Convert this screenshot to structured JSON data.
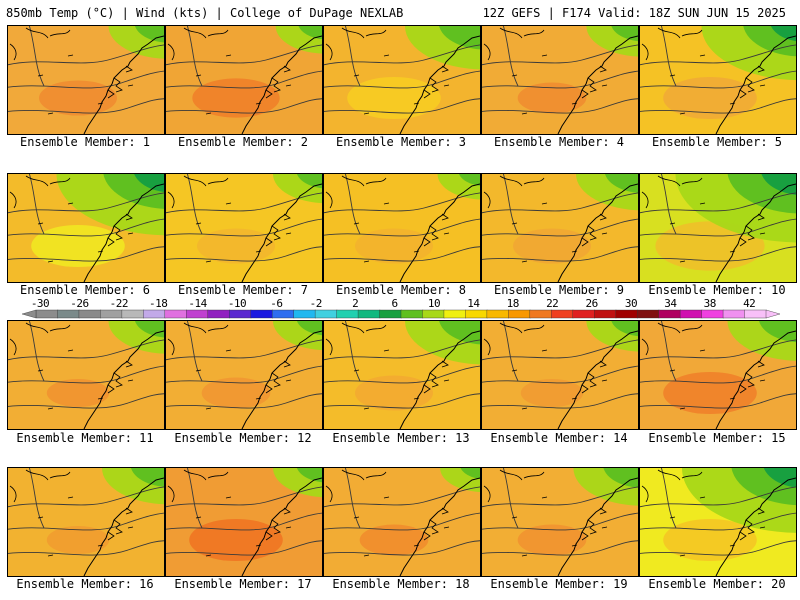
{
  "header": {
    "left_title": "850mb Temp (°C) | Wind (kts) | College of DuPage NEXLAB",
    "right_title": "12Z GEFS | F174 Valid: 18Z SUN JUN 15 2025"
  },
  "colorbar": {
    "tick_labels": [
      "-30",
      "-26",
      "-22",
      "-18",
      "-14",
      "-10",
      "-6",
      "-2",
      "2",
      "6",
      "10",
      "14",
      "18",
      "22",
      "26",
      "30",
      "34",
      "38",
      "42"
    ],
    "colors": [
      "#8c8c8c",
      "#7a8a8a",
      "#8a8a8a",
      "#a0a0a0",
      "#b8b8b8",
      "#c2a9e8",
      "#e070e0",
      "#c040d0",
      "#9020c0",
      "#5a2ad0",
      "#1a1ae0",
      "#2e6ef0",
      "#20b8f0",
      "#40d0e0",
      "#20d0b0",
      "#10b880",
      "#18a040",
      "#60c020",
      "#a8d818",
      "#f0f010",
      "#f8d800",
      "#f8b800",
      "#f89800",
      "#f07820",
      "#f04020",
      "#e02020",
      "#c01010",
      "#a00000",
      "#801010",
      "#b00060",
      "#d010b0",
      "#f040e0",
      "#f090f0",
      "#f8c0f8"
    ]
  },
  "panels": [
    {
      "label": "Ensemble Member: 1",
      "base": "#f1a93a",
      "spots": [
        {
          "c": "#f08830",
          "r": 0.25
        }
      ],
      "green": 0.15
    },
    {
      "label": "Ensemble Member: 2",
      "base": "#f0a535",
      "spots": [
        {
          "c": "#f07c28",
          "r": 0.28
        }
      ],
      "green": 0.08
    },
    {
      "label": "Ensemble Member: 3",
      "base": "#f3b42e",
      "spots": [
        {
          "c": "#f7d020",
          "r": 0.3
        }
      ],
      "green": 0.3
    },
    {
      "label": "Ensemble Member: 4",
      "base": "#f1ab36",
      "spots": [
        {
          "c": "#f08a30",
          "r": 0.22
        }
      ],
      "green": 0.12
    },
    {
      "label": "Ensemble Member: 5",
      "base": "#f5c225",
      "spots": [
        {
          "c": "#f0a838",
          "r": 0.3
        }
      ],
      "green": 0.45
    },
    {
      "label": "Ensemble Member: 6",
      "base": "#f3bb2a",
      "spots": [
        {
          "c": "#f0ee20",
          "r": 0.3
        }
      ],
      "green": 0.55
    },
    {
      "label": "Ensemble Member: 7",
      "base": "#f5c624",
      "spots": [
        {
          "c": "#f3b42e",
          "r": 0.25
        }
      ],
      "green": 0.1
    },
    {
      "label": "Ensemble Member: 8",
      "base": "#f5c024",
      "spots": [
        {
          "c": "#f3b02e",
          "r": 0.25
        }
      ],
      "green": 0.05
    },
    {
      "label": "Ensemble Member: 9",
      "base": "#f3b82c",
      "spots": [
        {
          "c": "#f0a535",
          "r": 0.25
        }
      ],
      "green": 0.2
    },
    {
      "label": "Ensemble Member: 10",
      "base": "#d8e020",
      "spots": [
        {
          "c": "#f3bc2a",
          "r": 0.35
        }
      ],
      "green": 0.65
    },
    {
      "label": "Ensemble Member: 11",
      "base": "#f2ae34",
      "spots": [
        {
          "c": "#f09030",
          "r": 0.2
        }
      ],
      "green": 0.15
    },
    {
      "label": "Ensemble Member: 12",
      "base": "#f2ae34",
      "spots": [
        {
          "c": "#f09432",
          "r": 0.22
        }
      ],
      "green": 0.1
    },
    {
      "label": "Ensemble Member: 13",
      "base": "#f4bc2a",
      "spots": [
        {
          "c": "#f2a832",
          "r": 0.25
        }
      ],
      "green": 0.3
    },
    {
      "label": "Ensemble Member: 14",
      "base": "#f2ae34",
      "spots": [
        {
          "c": "#f09832",
          "r": 0.2
        }
      ],
      "green": 0.12
    },
    {
      "label": "Ensemble Member: 15",
      "base": "#f1a838",
      "spots": [
        {
          "c": "#f07c28",
          "r": 0.3
        }
      ],
      "green": 0.25
    },
    {
      "label": "Ensemble Member: 16",
      "base": "#f2b230",
      "spots": [
        {
          "c": "#f09a30",
          "r": 0.2
        }
      ],
      "green": 0.2
    },
    {
      "label": "Ensemble Member: 17",
      "base": "#f09c34",
      "spots": [
        {
          "c": "#f07020",
          "r": 0.3
        }
      ],
      "green": 0.1
    },
    {
      "label": "Ensemble Member: 18",
      "base": "#f2ac34",
      "spots": [
        {
          "c": "#f08a2c",
          "r": 0.22
        }
      ],
      "green": 0.03
    },
    {
      "label": "Ensemble Member: 19",
      "base": "#f2ae34",
      "spots": [
        {
          "c": "#f09030",
          "r": 0.22
        }
      ],
      "green": 0.22
    },
    {
      "label": "Ensemble Member: 20",
      "base": "#f0ea20",
      "spots": [
        {
          "c": "#f5c224",
          "r": 0.3
        }
      ],
      "green": 0.6
    }
  ]
}
